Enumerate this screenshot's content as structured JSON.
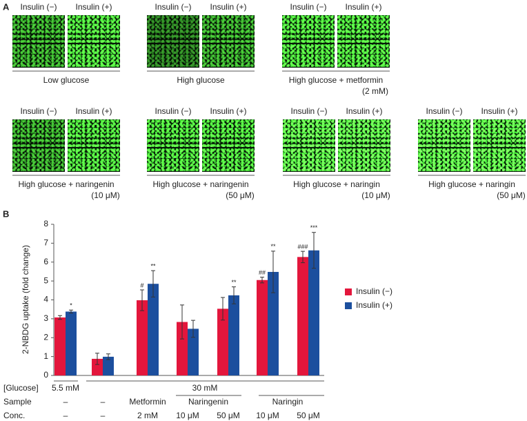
{
  "panel_a": {
    "label": "A",
    "groups": [
      {
        "labels": [
          "Insulin (−)",
          "Insulin (+)"
        ],
        "caption": [
          "Low glucose"
        ]
      },
      {
        "labels": [
          "Insulin (−)",
          "Insulin (+)"
        ],
        "caption": [
          "High glucose"
        ]
      },
      {
        "labels": [
          "Insulin (−)",
          "Insulin (+)"
        ],
        "caption": [
          "High glucose + metformin",
          "(2 mM)"
        ]
      },
      {
        "labels": [
          "Insulin (−)",
          "Insulin (+)"
        ],
        "caption": [
          "High glucose + naringenin",
          "(10 μM)"
        ]
      },
      {
        "labels": [
          "Insulin (−)",
          "Insulin (+)"
        ],
        "caption": [
          "High glucose + naringenin",
          "(50 μM)"
        ]
      },
      {
        "labels": [
          "Insulin (−)",
          "Insulin (+)"
        ],
        "caption": [
          "High glucose + naringin",
          "(10 μM)"
        ]
      },
      {
        "labels": [
          "Insulin (−)",
          "Insulin (+)"
        ],
        "caption": [
          "High glucose + naringin",
          "(50 μM)"
        ]
      }
    ]
  },
  "chart_data": {
    "type": "bar",
    "panel_label": "B",
    "y_label": "2-NBDG uptake (fold change)",
    "ylim": [
      0,
      8
    ],
    "yticks": [
      0,
      1,
      2,
      3,
      4,
      5,
      6,
      7,
      8
    ],
    "legend": "right",
    "row_labels": [
      "[Glucose]",
      "Sample",
      "Conc."
    ],
    "glucose": [
      "5.5 mM",
      "30 mM"
    ],
    "sample": [
      "–",
      "–",
      "Metformin",
      "Naringenin",
      "Naringin"
    ],
    "categories": [
      "–",
      "–",
      "2 mM",
      "10 μM",
      "50 μM",
      "10 μM",
      "50 μM"
    ],
    "series": [
      {
        "name": "Insulin (−)",
        "color": "#e3163c",
        "values": [
          3.07,
          0.88,
          3.98,
          2.83,
          3.53,
          5.05,
          6.27
        ],
        "errors": [
          0.1,
          0.3,
          0.55,
          0.9,
          0.6,
          0.15,
          0.3
        ],
        "annotations": [
          null,
          null,
          "#",
          null,
          null,
          "##",
          "###"
        ]
      },
      {
        "name": "Insulin (+)",
        "color": "#1c4f9e",
        "values": [
          3.38,
          0.99,
          4.85,
          2.47,
          4.24,
          5.48,
          6.62
        ],
        "errors": [
          0.08,
          0.15,
          0.7,
          0.45,
          0.45,
          1.1,
          0.95
        ],
        "annotations": [
          "*",
          null,
          "**",
          null,
          "**",
          "**",
          "***"
        ]
      }
    ]
  }
}
